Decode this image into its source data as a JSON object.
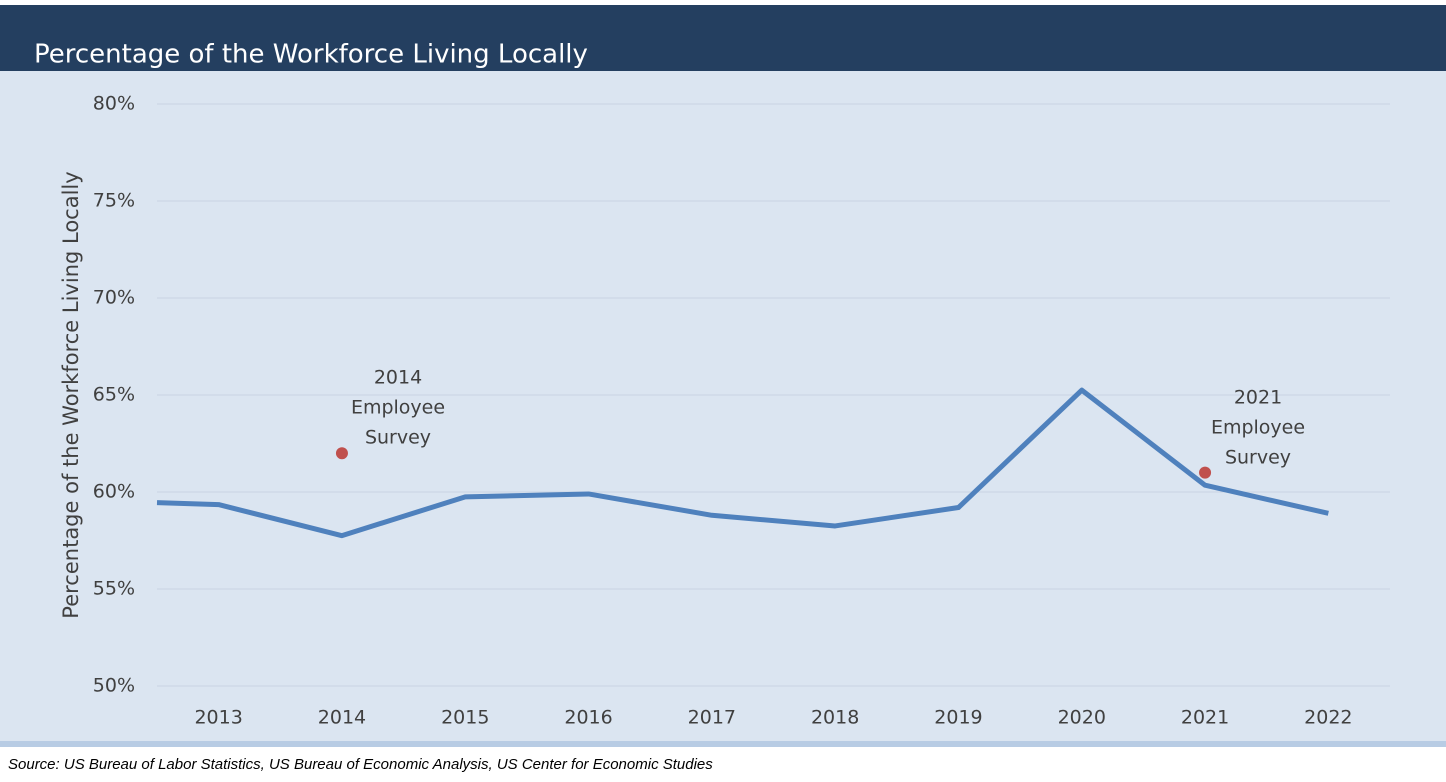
{
  "chart_data": {
    "type": "line",
    "title": "Percentage of the Workforce Living Locally",
    "y_label": "Percentage of the Workforce Living Locally",
    "source": "Source: US Bureau of Labor Statistics, US Bureau of Economic Analysis, US Center for Economic Studies",
    "x": [
      2012.5,
      2013,
      2014,
      2015,
      2016,
      2017,
      2018,
      2019,
      2020,
      2021,
      2022
    ],
    "series": [
      {
        "color": "#4f81bd",
        "values": [
          59.45,
          59.35,
          57.75,
          59.75,
          59.9,
          58.8,
          58.25,
          59.2,
          65.25,
          60.35,
          58.9
        ]
      }
    ],
    "points": {
      "color": "#c0504d",
      "x": [
        2014,
        2021
      ],
      "values": [
        62,
        61
      ]
    },
    "annotations": [
      [
        "2014",
        "Employee",
        "Survey"
      ],
      [
        "2021",
        "Employee",
        "Survey"
      ]
    ],
    "xlim": [
      2012.5,
      2022.5
    ],
    "xticks": [
      2013,
      2014,
      2015,
      2016,
      2017,
      2018,
      2019,
      2020,
      2021,
      2022
    ],
    "ylim": [
      50,
      80
    ],
    "yticks": [
      {
        "value": 50,
        "label": "50%"
      },
      {
        "value": 55,
        "label": "55%"
      },
      {
        "value": 60,
        "label": "60%"
      },
      {
        "value": 65,
        "label": "65%"
      },
      {
        "value": 70,
        "label": "70%"
      },
      {
        "value": 75,
        "label": "75%"
      },
      {
        "value": 80,
        "label": "80%"
      }
    ],
    "grid": true
  }
}
